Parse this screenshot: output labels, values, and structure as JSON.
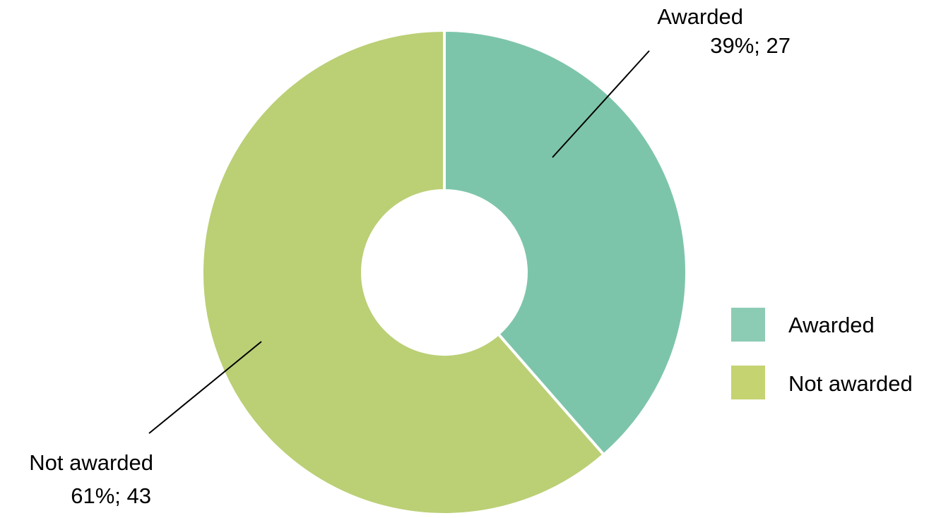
{
  "chart_data": {
    "type": "pie",
    "donut": true,
    "title": "",
    "legend_position": "right",
    "slices": [
      {
        "name": "Awarded",
        "value": 27,
        "percent": 39,
        "color": "#7dc5aa",
        "legend_color": "#8dccb4",
        "label_line1": "Awarded",
        "label_line2": "39%; 27"
      },
      {
        "name": "Not awarded",
        "value": 43,
        "percent": 61,
        "color": "#bbcf75",
        "legend_color": "#c5d371",
        "label_line1": "Not awarded",
        "label_line2": "61%; 43"
      }
    ],
    "legend": [
      {
        "label": "Awarded"
      },
      {
        "label": "Not awarded"
      }
    ]
  }
}
